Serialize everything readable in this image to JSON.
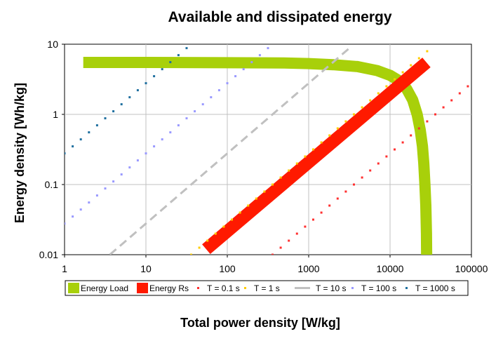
{
  "chart_data": {
    "type": "scatter",
    "title": "Available and dissipated energy",
    "xlabel": "Total power density [W/kg]",
    "ylabel": "Energy density [Wh/kg]",
    "x_scale": "log",
    "y_scale": "log",
    "xlim": [
      1,
      100000
    ],
    "ylim": [
      0.01,
      10
    ],
    "x_ticks": [
      "1",
      "10",
      "100",
      "1000",
      "10000",
      "100000"
    ],
    "y_ticks": [
      "0.01",
      "0.1",
      "1",
      "10"
    ],
    "grid": true,
    "legend_position": "bottom",
    "series": [
      {
        "name": "Energy Load",
        "color": "#a8d00a",
        "style": "thick-line",
        "points": [
          [
            1.7,
            5.5
          ],
          [
            10,
            5.5
          ],
          [
            100,
            5.45
          ],
          [
            500,
            5.4
          ],
          [
            1000,
            5.3
          ],
          [
            2000,
            5.1
          ],
          [
            4000,
            4.8
          ],
          [
            7000,
            4.2
          ],
          [
            10000,
            3.6
          ],
          [
            13000,
            3.0
          ],
          [
            16000,
            2.3
          ],
          [
            19000,
            1.6
          ],
          [
            21500,
            1.0
          ],
          [
            23500,
            0.6
          ],
          [
            25000,
            0.35
          ],
          [
            26000,
            0.2
          ],
          [
            26800,
            0.1
          ],
          [
            27500,
            0.05
          ],
          [
            28000,
            0.02
          ],
          [
            28200,
            0.0085
          ]
        ]
      },
      {
        "name": "Energy Rs",
        "color": "#ff1a00",
        "style": "thick-line",
        "points": [
          [
            55,
            0.012
          ],
          [
            28000,
            5.5
          ]
        ]
      },
      {
        "name": "T = 0.1 s",
        "color": "#ff3030",
        "style": "dots",
        "period_s": 0.1,
        "x_range": [
          360,
          100000
        ]
      },
      {
        "name": "T = 1 s",
        "color": "#ffcc00",
        "style": "dots",
        "period_s": 1,
        "x_range": [
          36,
          33000
        ]
      },
      {
        "name": "T = 10 s",
        "color": "#c0c0c0",
        "style": "dashed",
        "period_s": 10,
        "x_range": [
          3.6,
          3300
        ]
      },
      {
        "name": "T = 100 s",
        "color": "#9999ff",
        "style": "dots",
        "period_s": 100,
        "x_range": [
          1,
          330
        ]
      },
      {
        "name": "T = 1000 s",
        "color": "#1f6f9f",
        "style": "dots",
        "period_s": 1000,
        "x_range": [
          1,
          33
        ]
      }
    ]
  }
}
